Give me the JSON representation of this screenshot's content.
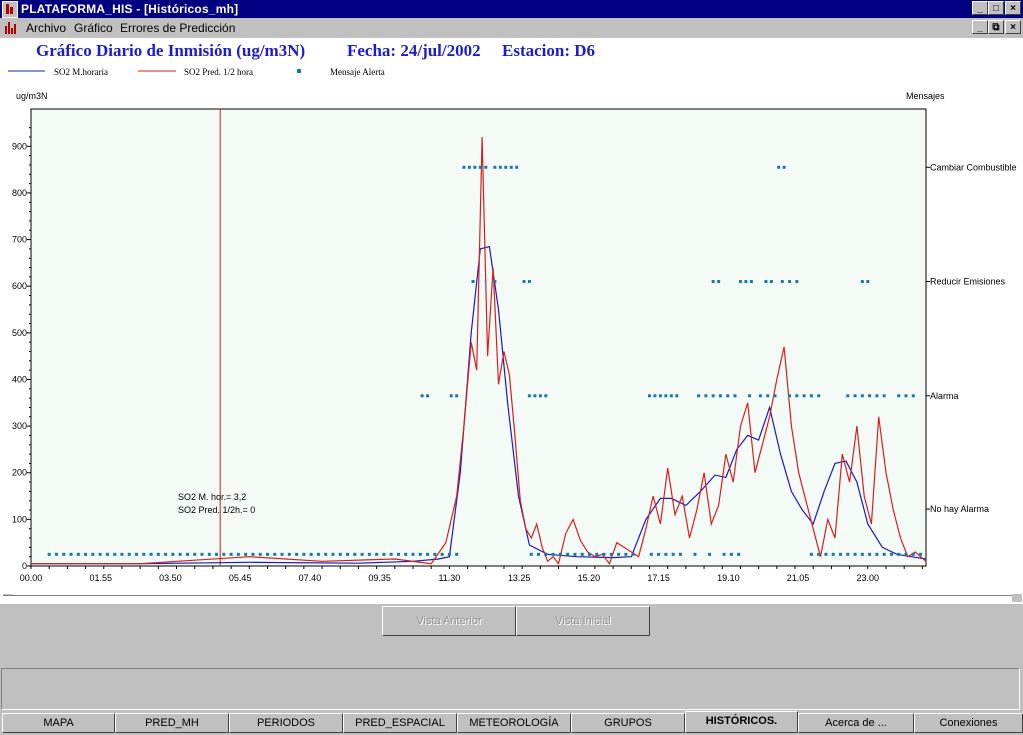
{
  "window": {
    "title": "PLATAFORMA_HIS - [Históricos_mh]",
    "minimize": "_",
    "maximize": "□",
    "close": "×",
    "restore": "⧉"
  },
  "menu": {
    "items": [
      "Archivo",
      "Gráfico",
      "Errores de Predicción"
    ]
  },
  "chart_header": {
    "title": "Gráfico Diario de Inmisión (ug/m3N)",
    "fecha": "Fecha: 24/jul/2002",
    "estacion": "Estacion: D6"
  },
  "legend": [
    "SO2 M.horaria",
    "SO2 Pred. 1/2 hora",
    "Mensaje Alerta"
  ],
  "annotation": {
    "line1": "SO2 M. hor.= 3,2",
    "line2": "SO2 Pred. 1/2h.= 0"
  },
  "buttons": {
    "prev_view": "Vista Anterior",
    "initial_view": "Vista Inicial"
  },
  "tabs": [
    "MAPA",
    "PRED_MH",
    "PERIODOS",
    "PRED_ESPACIAL",
    "METEOROLOGÍA",
    "GRUPOS",
    "HISTÓRICOS.",
    "Acerca de ...",
    "Conexiones"
  ],
  "active_tab": "HISTÓRICOS.",
  "colors": {
    "series_horaria": "#1c1cb4",
    "series_pred": "#d42020",
    "alerts": "#1878a8",
    "plot_bg": "#f4faf6",
    "title": "#1c1cc8",
    "cursor": "#c82020"
  },
  "chart_data": {
    "type": "line",
    "ylabel": "ug/m3N",
    "y2label": "Mensajes",
    "ylim": [
      0,
      980
    ],
    "yticks": [
      0,
      100,
      200,
      300,
      400,
      500,
      600,
      700,
      800,
      900
    ],
    "xlim": [
      0,
      24.6
    ],
    "xtick_labels": [
      "00.00",
      "01.55",
      "03.50",
      "05.45",
      "07.40",
      "09.35",
      "11.30",
      "13.25",
      "15.20",
      "17.15",
      "19.10",
      "21.05",
      "23.00"
    ],
    "xtick_values": [
      0,
      1.917,
      3.833,
      5.75,
      7.667,
      9.583,
      11.5,
      13.417,
      15.333,
      17.25,
      19.167,
      21.083,
      23.0
    ],
    "message_levels": [
      {
        "label": "Cambiar Combustible",
        "value": 855
      },
      {
        "label": "Reducir Emisiones",
        "value": 610
      },
      {
        "label": "Alarma",
        "value": 365
      },
      {
        "label": "No hay Alarma",
        "value": 122
      }
    ],
    "cursor_x": 5.2,
    "series": [
      {
        "name": "SO2 M.horaria",
        "x": [
          0,
          3,
          6,
          9,
          10.5,
          11.2,
          11.5,
          11.8,
          12.1,
          12.35,
          12.6,
          12.85,
          13.1,
          13.4,
          13.7,
          14.2,
          15,
          16,
          16.5,
          16.9,
          17.3,
          17.6,
          18,
          18.4,
          18.8,
          19.1,
          19.4,
          19.7,
          20.0,
          20.3,
          20.6,
          20.9,
          21.2,
          21.5,
          21.8,
          22.1,
          22.4,
          22.7,
          23.0,
          23.4,
          23.8,
          24.2,
          24.6
        ],
        "y": [
          5,
          5,
          8,
          6,
          10,
          15,
          20,
          200,
          500,
          680,
          685,
          550,
          350,
          150,
          45,
          25,
          20,
          18,
          20,
          100,
          145,
          145,
          130,
          160,
          195,
          190,
          250,
          280,
          270,
          340,
          240,
          160,
          120,
          90,
          160,
          220,
          225,
          180,
          90,
          40,
          25,
          20,
          15
        ]
      },
      {
        "name": "SO2 Pred. 1/2 hora",
        "x": [
          0,
          3,
          6,
          8,
          10,
          11.0,
          11.4,
          11.7,
          11.9,
          12.1,
          12.25,
          12.4,
          12.55,
          12.7,
          12.85,
          13.0,
          13.15,
          13.3,
          13.45,
          13.6,
          13.75,
          13.9,
          14.05,
          14.2,
          14.35,
          14.5,
          14.7,
          14.9,
          15.1,
          15.3,
          15.5,
          15.7,
          15.9,
          16.1,
          16.3,
          16.5,
          16.7,
          16.9,
          17.1,
          17.3,
          17.5,
          17.7,
          17.9,
          18.1,
          18.3,
          18.5,
          18.7,
          18.9,
          19.1,
          19.3,
          19.5,
          19.7,
          19.9,
          20.1,
          20.3,
          20.5,
          20.7,
          20.9,
          21.1,
          21.3,
          21.5,
          21.7,
          21.9,
          22.1,
          22.3,
          22.5,
          22.7,
          22.9,
          23.1,
          23.3,
          23.5,
          23.7,
          23.9,
          24.1,
          24.3,
          24.6
        ],
        "y": [
          5,
          5,
          20,
          10,
          15,
          5,
          50,
          150,
          300,
          480,
          420,
          920,
          450,
          640,
          390,
          460,
          410,
          280,
          140,
          80,
          60,
          90,
          40,
          10,
          20,
          5,
          70,
          100,
          55,
          30,
          20,
          25,
          5,
          50,
          40,
          30,
          20,
          80,
          150,
          90,
          210,
          110,
          150,
          60,
          120,
          200,
          90,
          130,
          240,
          180,
          300,
          350,
          200,
          260,
          320,
          400,
          470,
          300,
          200,
          140,
          80,
          20,
          100,
          60,
          240,
          180,
          300,
          150,
          90,
          320,
          200,
          120,
          60,
          20,
          30,
          10
        ]
      }
    ],
    "alerts": [
      {
        "x": [
          0.5,
          0.7,
          0.9,
          1.1,
          1.3,
          1.5,
          1.7,
          1.9,
          2.1,
          2.3,
          2.5,
          2.7,
          2.9,
          3.1,
          3.3,
          3.5,
          3.7,
          3.9,
          4.1,
          4.3,
          4.5,
          4.7,
          4.9,
          5.1,
          5.3,
          5.5,
          5.7,
          5.9,
          6.1,
          6.3,
          6.5,
          6.7,
          6.9,
          7.1,
          7.3,
          7.5,
          7.7,
          7.9,
          8.1,
          8.3,
          8.5,
          8.7,
          8.9,
          9.1,
          9.3,
          9.5,
          9.7,
          9.9,
          10.1,
          10.3,
          10.5,
          10.7,
          10.9,
          11.1,
          11.3,
          11.5,
          11.7,
          13.75,
          13.95,
          14.15,
          14.35,
          14.55,
          14.75,
          14.95,
          15.15,
          15.35,
          15.55,
          15.75,
          15.95,
          16.15,
          16.35,
          16.55,
          17.05,
          17.25,
          17.45,
          17.65,
          17.85,
          18.25,
          18.65,
          19.05,
          19.25,
          19.45,
          21.45,
          21.65,
          21.85,
          22.05,
          22.25,
          22.45,
          22.65,
          22.85,
          23.05,
          23.25,
          23.45,
          23.65,
          23.85,
          24.05,
          24.25,
          24.45
        ],
        "level": "base"
      },
      {
        "x": [
          11.9,
          12.05,
          12.2,
          12.35,
          12.5,
          12.75,
          12.9,
          13.05,
          13.2,
          13.35,
          20.55,
          20.7
        ],
        "level": "Cambiar Combustible"
      },
      {
        "x": [
          12.15,
          12.75,
          13.55,
          13.7,
          18.75,
          18.9,
          19.5,
          19.65,
          19.8,
          20.2,
          20.35,
          20.65,
          20.85,
          21.05,
          22.85,
          23.0
        ],
        "level": "Reducir Emisiones"
      },
      {
        "x": [
          10.75,
          10.9,
          11.55,
          11.7,
          13.7,
          13.85,
          14.0,
          14.15,
          17.0,
          17.15,
          17.3,
          17.45,
          17.6,
          17.75,
          18.35,
          18.55,
          18.75,
          18.95,
          19.15,
          19.35,
          19.75,
          20.05,
          20.25,
          20.45,
          20.85,
          21.05,
          21.25,
          21.45,
          21.65,
          22.45,
          22.65,
          22.85,
          23.05,
          23.25,
          23.45,
          23.85,
          24.05,
          24.25
        ],
        "level": "Alarma"
      }
    ]
  }
}
